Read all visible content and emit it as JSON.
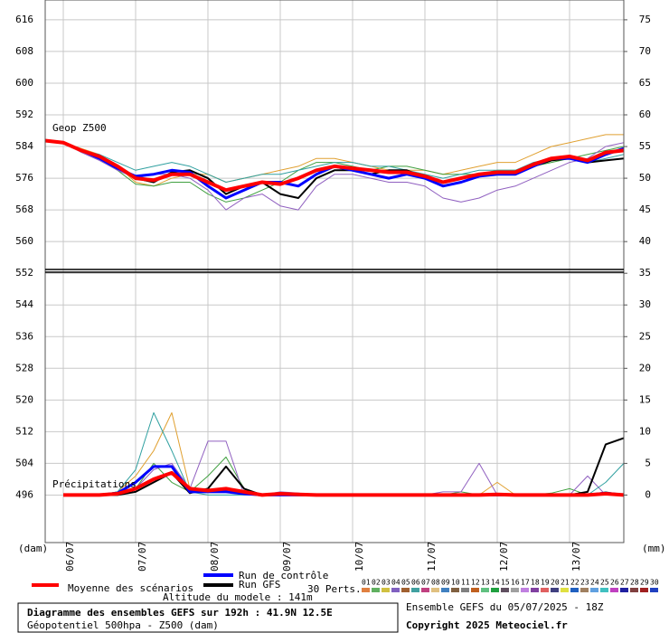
{
  "chart_data": {
    "type": "line",
    "title": "Diagramme des ensembles GEFS sur 192h : 41.9N 12.5E",
    "subtitle": "Géopotentiel 500hpa - Z500 (dam)",
    "run_info": "Ensemble GEFS du 05/07/2025 - 18Z",
    "copyright": "Copyright 2025 Meteociel.fr",
    "altitude": "Altitude du modele : 141m",
    "y_label": "(dam)",
    "y2_label": "(mm)",
    "z500_label": "Geop Z500",
    "precip_label": "Précipitations",
    "x": [
      0,
      6,
      12,
      18,
      24,
      30,
      36,
      42,
      48,
      54,
      60,
      66,
      72,
      78,
      84,
      90,
      96,
      102,
      108,
      114,
      120,
      126,
      132,
      138,
      144,
      150,
      156,
      162,
      168,
      174,
      180,
      186,
      192
    ],
    "xlim": [
      0,
      192
    ],
    "xticks": [
      {
        "value": 6,
        "label": "06/07"
      },
      {
        "value": 30,
        "label": "07/07"
      },
      {
        "value": 54,
        "label": "08/07"
      },
      {
        "value": 78,
        "label": "09/07"
      },
      {
        "value": 102,
        "label": "10/07"
      },
      {
        "value": 126,
        "label": "11/07"
      },
      {
        "value": 150,
        "label": "12/07"
      },
      {
        "value": 174,
        "label": "13/07"
      }
    ],
    "ylim": [
      484,
      621
    ],
    "yticks": [
      496,
      504,
      512,
      520,
      528,
      536,
      544,
      552,
      560,
      568,
      576,
      584,
      592,
      600,
      608,
      616
    ],
    "y2lim": [
      -7.5,
      78.125
    ],
    "y2ticks": [
      0,
      5,
      10,
      15,
      20,
      25,
      30,
      35,
      40,
      45,
      50,
      55,
      60,
      65,
      70,
      75
    ],
    "grid": true,
    "series": [
      {
        "name": "Moyenne des scénarios",
        "color": "#ff0000",
        "values": [
          585.5,
          585,
          583,
          581.5,
          579,
          576,
          575.5,
          577,
          577,
          575,
          573,
          574,
          575,
          574.5,
          576,
          578,
          579,
          578.5,
          578,
          577.5,
          577.5,
          576.5,
          575,
          576,
          577,
          577.5,
          577.5,
          579.5,
          581,
          581.5,
          580.5,
          582.5,
          583
        ],
        "precip": [
          null,
          0,
          0,
          0,
          0.2,
          1,
          2.5,
          3.5,
          1,
          0.7,
          1,
          0.5,
          0,
          0.2,
          0.1,
          0,
          0,
          0,
          0,
          0,
          0,
          0,
          0,
          0,
          0,
          0.1,
          0,
          0,
          0,
          0,
          0,
          0.2,
          0
        ]
      },
      {
        "name": "Run de contrôle",
        "color": "#0000ff",
        "values": [
          585.5,
          585,
          583,
          581,
          578.5,
          576.5,
          577,
          578,
          577.5,
          574,
          571,
          573,
          575,
          575,
          574,
          577,
          579,
          578,
          577,
          576,
          577,
          576,
          574,
          575,
          576.5,
          577,
          577,
          579,
          581,
          581,
          580,
          582,
          583.5
        ],
        "precip": [
          null,
          0,
          0,
          0,
          0.3,
          2,
          4.5,
          4.5,
          0.5,
          0.5,
          0.5,
          0.2,
          0,
          0,
          0,
          0,
          0,
          0,
          0,
          0,
          0,
          0,
          0,
          0,
          0,
          0,
          0,
          0,
          0,
          0,
          0,
          0.3,
          0
        ]
      },
      {
        "name": "Run GFS",
        "color": "#000000",
        "values": [
          585.5,
          585,
          583,
          581.5,
          579,
          576,
          575,
          577.5,
          578,
          576,
          572,
          574,
          575,
          572,
          571,
          576,
          578,
          578,
          577,
          578,
          578,
          576,
          574,
          575,
          576.5,
          577,
          577,
          579,
          580.5,
          581,
          580,
          580.5,
          581
        ],
        "precip": [
          null,
          0,
          0,
          0,
          0,
          0.5,
          2,
          3.5,
          0.3,
          1,
          4.5,
          1,
          0,
          0,
          0,
          0,
          0,
          0,
          0,
          0,
          0,
          0,
          0,
          0,
          0,
          0,
          0,
          0,
          0,
          0,
          0.5,
          8,
          9
        ]
      }
    ],
    "members": [
      {
        "color": "#e0a030",
        "values": [
          585.5,
          585,
          583.5,
          582,
          579,
          575,
          574,
          576,
          577,
          577,
          575,
          576,
          577,
          578,
          579,
          581,
          581,
          580,
          579,
          578,
          578,
          578,
          577,
          578,
          579,
          580,
          580,
          582,
          584,
          585,
          586,
          587,
          587
        ],
        "precip": [
          null,
          0,
          0,
          0,
          0.5,
          3,
          7,
          13,
          1,
          1,
          0.5,
          0,
          0,
          0,
          0,
          0,
          0,
          0,
          0,
          0,
          0,
          0,
          0,
          0,
          0,
          2,
          0,
          0,
          0,
          0,
          0,
          0,
          0
        ]
      },
      {
        "color": "#40a040",
        "values": [
          585.5,
          585,
          583,
          581,
          578,
          574.5,
          574,
          575,
          575,
          572,
          570,
          571,
          573,
          575,
          578,
          580,
          580,
          579,
          578,
          579,
          579,
          578,
          577,
          577,
          577,
          578,
          578,
          579,
          580,
          581,
          582,
          583,
          584
        ],
        "precip": [
          null,
          0,
          0,
          0,
          0.5,
          1,
          5,
          2,
          0.5,
          3,
          6,
          1,
          0,
          0,
          0,
          0,
          0,
          0,
          0,
          0,
          0,
          0,
          0,
          0.5,
          0,
          0,
          0,
          0,
          0.3,
          1,
          0,
          0.5,
          0
        ]
      },
      {
        "color": "#9060c0",
        "values": [
          585.5,
          585,
          582.5,
          580.5,
          578,
          576,
          577,
          577,
          576,
          573,
          568,
          571,
          572,
          569,
          568,
          574,
          577,
          577,
          576,
          575,
          575,
          574,
          571,
          570,
          571,
          573,
          574,
          576,
          578,
          580,
          581,
          584,
          585
        ],
        "precip": [
          null,
          0,
          0,
          0,
          0.2,
          1,
          4,
          5,
          1,
          8.5,
          8.5,
          0,
          0,
          0.5,
          0.3,
          0,
          0,
          0,
          0,
          0,
          0,
          0,
          0.5,
          0.5,
          5,
          0,
          0,
          0,
          0,
          0,
          3,
          0,
          0
        ]
      },
      {
        "color": "#30a0a0",
        "values": [
          585.5,
          585,
          583,
          582,
          580,
          578,
          579,
          580,
          579,
          577,
          575,
          576,
          577,
          577,
          578,
          579,
          580,
          580,
          579,
          579,
          578,
          577,
          576,
          577,
          578,
          578,
          578,
          580,
          581,
          581,
          580,
          581,
          582
        ],
        "precip": [
          null,
          0,
          0,
          0,
          0.5,
          4,
          13,
          7,
          0.5,
          0,
          0,
          0,
          0,
          0,
          0,
          0,
          0,
          0,
          0,
          0,
          0,
          0,
          0,
          0,
          0,
          0,
          0,
          0,
          0,
          0,
          0,
          2,
          5
        ]
      }
    ],
    "perturbations": {
      "label": "30 Perts.",
      "ids": [
        "01",
        "02",
        "03",
        "04",
        "05",
        "06",
        "07",
        "08",
        "09",
        "10",
        "11",
        "12",
        "13",
        "14",
        "15",
        "16",
        "17",
        "18",
        "19",
        "20",
        "21",
        "22",
        "23",
        "24",
        "25",
        "26",
        "27",
        "28",
        "29",
        "30"
      ],
      "colors": [
        "#e08040",
        "#60b060",
        "#d0c040",
        "#8060c0",
        "#a06030",
        "#40a0a0",
        "#c04080",
        "#e0c080",
        "#4080c0",
        "#806040",
        "#808080",
        "#c06020",
        "#60c080",
        "#20a040",
        "#605060",
        "#a0a0a0",
        "#c080e0",
        "#8040a0",
        "#e06060",
        "#404080",
        "#e0e040",
        "#2060c0",
        "#a08060",
        "#60a0e0",
        "#40c0c0",
        "#c040c0",
        "#2020a0",
        "#804040",
        "#a02020",
        "#2040c0"
      ]
    }
  }
}
